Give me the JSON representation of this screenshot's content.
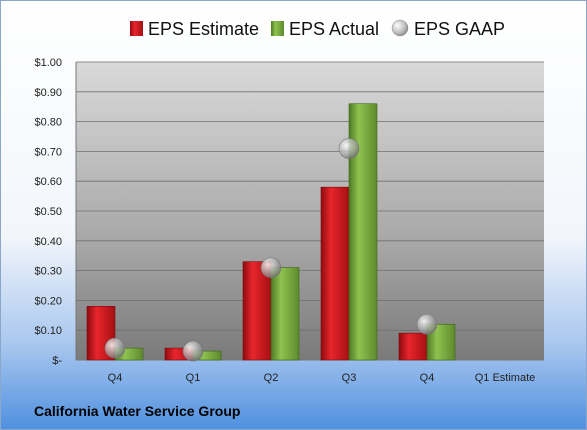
{
  "company": "California Water Service Group",
  "chart_data": {
    "type": "bar",
    "categories": [
      "Q4",
      "Q1",
      "Q2",
      "Q3",
      "Q4",
      "Q1 Estimate"
    ],
    "series": [
      {
        "name": "EPS Estimate",
        "type": "bar",
        "color": "#c0151b",
        "values": [
          0.18,
          0.04,
          0.33,
          0.58,
          0.09,
          null
        ]
      },
      {
        "name": "EPS Actual",
        "type": "bar",
        "color": "#72a33c",
        "values": [
          0.04,
          0.03,
          0.31,
          0.86,
          0.12,
          null
        ]
      },
      {
        "name": "EPS GAAP",
        "type": "scatter",
        "color": "#aaaaaa",
        "values": [
          0.04,
          0.03,
          0.31,
          0.71,
          0.12,
          null
        ]
      }
    ],
    "y_ticks": [
      "$-",
      "$0.10",
      "$0.20",
      "$0.30",
      "$0.40",
      "$0.50",
      "$0.60",
      "$0.70",
      "$0.80",
      "$0.90",
      "$1.00"
    ],
    "ylim": [
      0,
      1.0
    ],
    "grid": true,
    "legend_position": "top"
  }
}
